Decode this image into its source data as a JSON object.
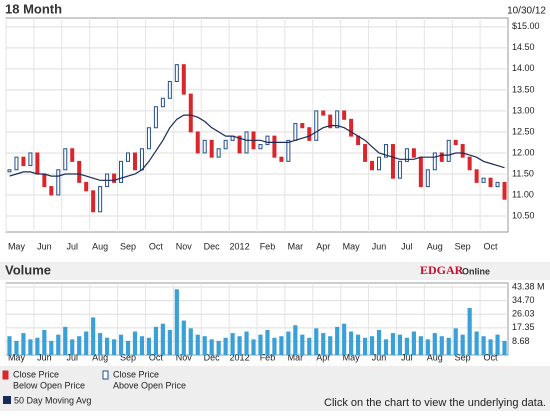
{
  "chart_data": [
    {
      "type": "price",
      "title": "18 Month",
      "date": "10/30/12",
      "categories": [
        "May",
        null,
        null,
        null,
        "Jun",
        null,
        null,
        null,
        "Jul",
        null,
        null,
        null,
        "Aug",
        null,
        null,
        null,
        "Sep",
        null,
        null,
        null,
        "Oct",
        null,
        null,
        null,
        "Nov",
        null,
        null,
        null,
        "Dec",
        null,
        null,
        null,
        "2012",
        null,
        null,
        null,
        "Feb",
        null,
        null,
        null,
        "Mar",
        null,
        null,
        null,
        "Apr",
        null,
        null,
        null,
        "May",
        null,
        null,
        null,
        "Jun",
        null,
        null,
        null,
        "Jul",
        null,
        null,
        null,
        "Aug",
        null,
        null,
        null,
        "Sep",
        null,
        null,
        null,
        "Oct",
        null,
        null,
        null
      ],
      "values": [
        11.6,
        11.9,
        11.7,
        12.0,
        11.5,
        11.2,
        11.0,
        11.6,
        12.1,
        11.8,
        11.3,
        11.1,
        10.6,
        11.2,
        11.5,
        11.3,
        11.8,
        12.0,
        11.6,
        12.1,
        12.6,
        13.1,
        13.3,
        13.7,
        14.1,
        13.4,
        12.5,
        12.0,
        12.3,
        11.9,
        12.1,
        12.3,
        12.4,
        12.0,
        12.5,
        12.1,
        12.2,
        12.4,
        11.9,
        11.8,
        12.3,
        12.7,
        12.6,
        12.3,
        13.0,
        12.9,
        12.6,
        13.0,
        12.8,
        12.4,
        12.2,
        11.8,
        11.6,
        11.9,
        12.2,
        11.4,
        11.8,
        12.1,
        11.9,
        11.2,
        11.6,
        12.0,
        11.8,
        12.3,
        12.2,
        11.9,
        11.6,
        11.3,
        11.4,
        11.2,
        11.3,
        10.9
      ],
      "down_color": "#d9262b",
      "up_color": "#1f4f8f",
      "series": [
        {
          "name": "50 Day Moving Avg",
          "color": "#1a2a5a",
          "values": [
            11.45,
            11.5,
            11.55,
            11.55,
            11.5,
            11.5,
            11.45,
            11.45,
            11.5,
            11.5,
            11.5,
            11.45,
            11.4,
            11.35,
            11.35,
            11.35,
            11.4,
            11.45,
            11.5,
            11.6,
            11.8,
            12.05,
            12.3,
            12.6,
            12.8,
            12.9,
            12.9,
            12.85,
            12.75,
            12.6,
            12.5,
            12.4,
            12.4,
            12.35,
            12.3,
            12.3,
            12.3,
            12.25,
            12.25,
            12.25,
            12.25,
            12.3,
            12.35,
            12.4,
            12.5,
            12.6,
            12.65,
            12.65,
            12.6,
            12.5,
            12.4,
            12.3,
            12.15,
            12.0,
            11.95,
            11.9,
            11.85,
            11.85,
            11.85,
            11.9,
            11.9,
            11.9,
            11.95,
            11.95,
            12.0,
            12.0,
            11.95,
            11.9,
            11.8,
            11.75,
            11.7,
            11.65
          ]
        }
      ],
      "legend": [
        {
          "label": "Close Price",
          "sublabel": "Below Open Price",
          "color": "#d9262b"
        },
        {
          "label": "Close Price",
          "sublabel": "Above Open Price",
          "color": "#1f4f8f"
        }
      ],
      "ylim": [
        10.12,
        15.21
      ],
      "yticks": [
        {
          "value": 10.5,
          "label": "10.50"
        },
        {
          "value": 11,
          "label": "11.00"
        },
        {
          "value": 11.5,
          "label": "11.50"
        },
        {
          "value": 12,
          "label": "12.00"
        },
        {
          "value": 12.5,
          "label": "12.50"
        },
        {
          "value": 13,
          "label": "13.00"
        },
        {
          "value": 13.5,
          "label": "13.50"
        },
        {
          "value": 14,
          "label": "14.00"
        },
        {
          "value": 14.5,
          "label": "14.50"
        },
        {
          "value": 15,
          "label": "$15.00"
        }
      ]
    },
    {
      "type": "bar",
      "title": "Volume",
      "logo": "EDGAR",
      "logo_suffix": "Online",
      "categories": [
        "May",
        null,
        null,
        null,
        "Jun",
        null,
        null,
        null,
        "Jul",
        null,
        null,
        null,
        "Aug",
        null,
        null,
        null,
        "Sep",
        null,
        null,
        null,
        "Oct",
        null,
        null,
        null,
        "Nov",
        null,
        null,
        null,
        "Dec",
        null,
        null,
        null,
        "2012",
        null,
        null,
        null,
        "Feb",
        null,
        null,
        null,
        "Mar",
        null,
        null,
        null,
        "Apr",
        null,
        null,
        null,
        "May",
        null,
        null,
        null,
        "Jun",
        null,
        null,
        null,
        "Jul",
        null,
        null,
        null,
        "Aug",
        null,
        null,
        null,
        "Sep",
        null,
        null,
        null,
        "Oct",
        null,
        null,
        null
      ],
      "values": [
        12,
        9,
        14,
        10,
        11,
        16,
        9,
        13,
        18,
        10,
        12,
        15,
        24,
        14,
        11,
        10,
        13,
        9,
        15,
        12,
        11,
        18,
        20,
        16,
        42,
        22,
        17,
        13,
        12,
        10,
        9,
        11,
        14,
        12,
        15,
        10,
        13,
        16,
        11,
        12,
        15,
        19,
        13,
        11,
        17,
        14,
        12,
        18,
        20,
        15,
        13,
        11,
        12,
        16,
        10,
        14,
        13,
        11,
        15,
        12,
        10,
        14,
        12,
        11,
        17,
        13,
        30,
        15,
        12,
        10,
        13,
        9
      ],
      "color": "#3aa0d8",
      "ylim": [
        0,
        46
      ],
      "yticks": [
        {
          "value": 8.68,
          "label": "8.68"
        },
        {
          "value": 17.35,
          "label": "17.35"
        },
        {
          "value": 26.03,
          "label": "26.03"
        },
        {
          "value": 34.7,
          "label": "34.70"
        },
        {
          "value": 43.38,
          "label": "43.38 M"
        }
      ]
    }
  ],
  "footer": {
    "moving_avg": "50 Day Moving Avg",
    "note": "Click on the chart to view the underlying data."
  }
}
